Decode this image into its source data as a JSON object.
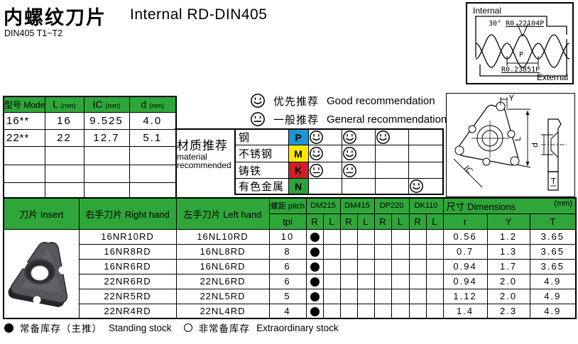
{
  "page": {
    "title_zh": "内螺纹刀片",
    "title_en": "Internal RD-DIN405",
    "subtitle": "DIN405 T1~T2"
  },
  "profile_diagram": {
    "internal": "Internal",
    "external": "External",
    "angle": "30°",
    "crest_radius": "R0.22104P",
    "pitch": "P",
    "root_radius": "R0.23851P"
  },
  "spec_table": {
    "col_model": "型号 Model",
    "cols": [
      {
        "label": "L",
        "unit": "(mm)"
      },
      {
        "label": "IC",
        "unit": "(mm)"
      },
      {
        "label": "d",
        "unit": "(mm)"
      }
    ],
    "rows": [
      {
        "model": "16**",
        "L": "16",
        "IC": "9.525",
        "d": "4.0"
      },
      {
        "model": "22**",
        "L": "22",
        "IC": "12.7",
        "d": "5.1"
      }
    ]
  },
  "recommend_legend": [
    {
      "type": "good",
      "zh": "优先推荐",
      "en": "Good recommendation"
    },
    {
      "type": "general",
      "zh": "一般推荐",
      "en": "General recommendation"
    }
  ],
  "material": {
    "title_zh": "材质推荐",
    "title_en_1": "material",
    "title_en_2": "recommended",
    "rows": [
      {
        "label": "钢",
        "letter": "P",
        "color": "#1A97D5",
        "marks": [
          "good",
          "good",
          "good",
          ""
        ]
      },
      {
        "label": "不锈钢",
        "letter": "M",
        "color": "#FFE800",
        "marks": [
          "good",
          "good",
          "",
          ""
        ]
      },
      {
        "label": "铸铁",
        "letter": "K",
        "color": "#CE2028",
        "marks": [
          "general",
          "general",
          "",
          ""
        ]
      },
      {
        "label": "有色金属",
        "letter": "N",
        "color": "#2EA23C",
        "marks": [
          "",
          "",
          "",
          "good"
        ]
      }
    ]
  },
  "dimension_labels": {
    "Y": "Y",
    "L": "L",
    "IC": "IC",
    "d": "d",
    "T": "T"
  },
  "main_table": {
    "col_insert": "刀片 Insert",
    "col_right": "右手刀片 Right hand",
    "col_left": "左手刀片 Left hand",
    "col_pitch": "螺距 pitch",
    "col_pitch_unit": "tpi",
    "grades": [
      "DM215",
      "DM415",
      "DP220",
      "DK110"
    ],
    "sub_r": "R",
    "sub_l": "L",
    "dim_title": "尺寸 Dimensions",
    "dim_unit": "(mm)",
    "dim_cols": [
      "r",
      "Y",
      "T"
    ],
    "rows": [
      {
        "right": "16NR10RD",
        "left": "16NL10RD",
        "tpi": "10",
        "stocks": [
          "solid",
          "",
          "",
          "",
          "",
          "",
          "",
          ""
        ],
        "r": "0.56",
        "Y": "1.2",
        "T": "3.65"
      },
      {
        "right": "16NR8RD",
        "left": "16NL8RD",
        "tpi": "8",
        "stocks": [
          "solid",
          "",
          "",
          "",
          "",
          "",
          "",
          ""
        ],
        "r": "0.7",
        "Y": "1.3",
        "T": "3.65"
      },
      {
        "right": "16NR6RD",
        "left": "16NL6RD",
        "tpi": "6",
        "stocks": [
          "solid",
          "",
          "",
          "",
          "",
          "",
          "",
          ""
        ],
        "r": "0.94",
        "Y": "1.7",
        "T": "3.65"
      },
      {
        "right": "22NR6RD",
        "left": "22NL6RD",
        "tpi": "6",
        "stocks": [
          "solid",
          "",
          "",
          "",
          "",
          "",
          "",
          ""
        ],
        "r": "0.94",
        "Y": "2.0",
        "T": "4.9"
      },
      {
        "right": "22NR5RD",
        "left": "22NL5RD",
        "tpi": "5",
        "stocks": [
          "solid",
          "",
          "",
          "",
          "",
          "",
          "",
          ""
        ],
        "r": "1.12",
        "Y": "2.0",
        "T": "4.9"
      },
      {
        "right": "22NR4RD",
        "left": "22NL4RD",
        "tpi": "4",
        "stocks": [
          "solid",
          "",
          "",
          "",
          "",
          "",
          "",
          ""
        ],
        "r": "1.4",
        "Y": "2.3",
        "T": "4.9"
      }
    ]
  },
  "footer": {
    "solid_zh": "常备库存（主推）",
    "solid_en": "Standing stock",
    "open_zh": "非常备库存",
    "open_en": "Extraordinary stock"
  },
  "colors": {
    "table_green": "#2FA63A",
    "chip_blue": "#1A97D5",
    "chip_yellow": "#FFE800",
    "chip_red": "#CE2028",
    "chip_green": "#2EA23C"
  }
}
